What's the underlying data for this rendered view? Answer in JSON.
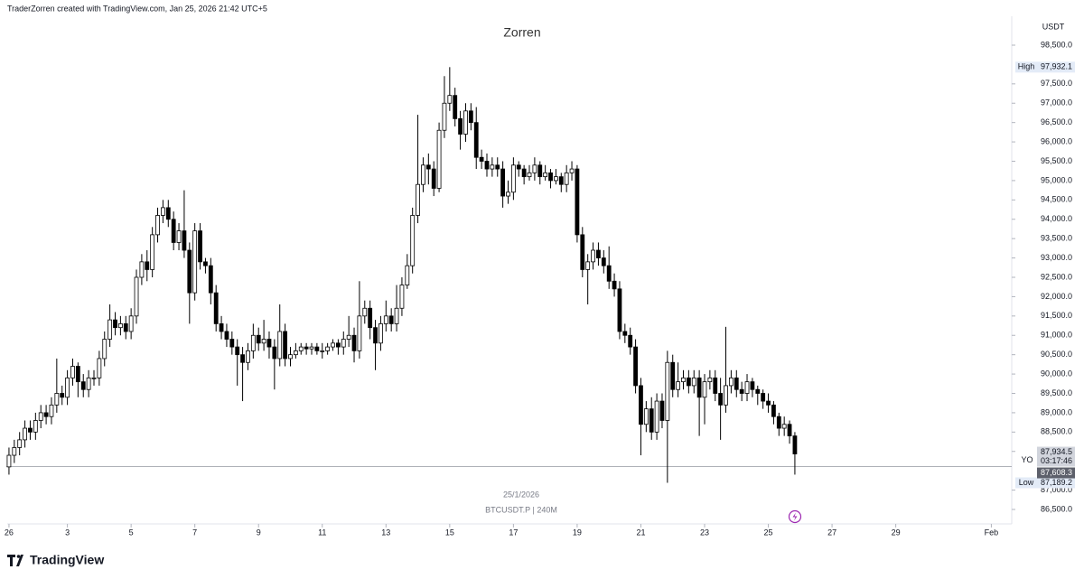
{
  "chart_data": {
    "type": "candlestick",
    "header": "TraderZorren created with TradingView.com, Jan 25, 2026 21:42 UTC+5",
    "title": "Zorren",
    "currency": "USDT",
    "watermark_date": "25/1/2026",
    "watermark_symbol": "BTCUSDT.P | 240M",
    "logo": "TradingView",
    "up_color": "#ffffff",
    "down_color": "#000000",
    "outline_color": "#000000",
    "open": [
      87600,
      87900,
      88100,
      88300,
      88600,
      88500,
      88800,
      89000,
      88900,
      89200,
      89500,
      89400,
      89900,
      90200,
      89800,
      89600,
      89900,
      89900,
      90400,
      90900,
      91400,
      91200,
      91300,
      91100,
      91500,
      92500,
      92900,
      92700,
      93600,
      94100,
      94300,
      94000,
      93400,
      93700,
      93200,
      92100,
      93700,
      92900,
      92800,
      92100,
      91300,
      91100,
      90900,
      90700,
      90500,
      90300,
      90600,
      91000,
      90800,
      90900,
      90700,
      90400,
      91100,
      90400,
      90500,
      90600,
      90700,
      90650,
      90700,
      90600,
      90600,
      90700,
      90800,
      90700,
      90900,
      91000,
      90600,
      91500,
      91700,
      91200,
      90800,
      91300,
      91500,
      91300,
      91700,
      92300,
      92800,
      94100,
      94900,
      95400,
      95300,
      94800,
      96300,
      97000,
      97200,
      96600,
      96200,
      96800,
      96500,
      95600,
      95500,
      95300,
      95400,
      95300,
      94600,
      94700,
      95400,
      95300,
      95100,
      95200,
      95400,
      95100,
      95200,
      95000,
      95100,
      94900,
      95200,
      95300,
      93600,
      92700,
      92900,
      93200,
      93000,
      92800,
      92400,
      92200,
      91100,
      91000,
      90700,
      89700,
      88700,
      89100,
      88500,
      89300,
      88800,
      90300,
      89600,
      89800,
      89900,
      89700,
      89900,
      89400,
      89800,
      89900,
      89500,
      89200,
      89700,
      89900,
      89600,
      89500,
      89800,
      89600,
      89500,
      89300,
      89200,
      88900,
      88600,
      88700,
      88400
    ],
    "high": [
      88100,
      88300,
      88500,
      88800,
      88800,
      89000,
      89200,
      89200,
      89400,
      90400,
      89700,
      90100,
      90400,
      90300,
      90000,
      90100,
      90100,
      90600,
      91100,
      91800,
      91600,
      91500,
      91500,
      91700,
      92700,
      93100,
      93200,
      93800,
      94300,
      94500,
      94500,
      94200,
      93900,
      94750,
      93400,
      93900,
      93900,
      93000,
      93000,
      92300,
      91500,
      91300,
      91100,
      90900,
      90700,
      90800,
      91300,
      91200,
      91400,
      91100,
      90900,
      91800,
      91300,
      90700,
      90800,
      90800,
      90800,
      90800,
      90800,
      90800,
      90800,
      90900,
      90900,
      91100,
      91500,
      91200,
      92400,
      91900,
      91900,
      91400,
      91500,
      91900,
      91700,
      92300,
      92500,
      93100,
      94300,
      96700,
      95600,
      95700,
      95500,
      96500,
      97700,
      97932.1,
      97400,
      96800,
      97000,
      97000,
      96900,
      95800,
      95700,
      95600,
      95600,
      95500,
      95000,
      95600,
      95500,
      95400,
      95400,
      95600,
      95500,
      95400,
      95300,
      95300,
      95200,
      95400,
      95500,
      95400,
      93800,
      93100,
      93400,
      93400,
      93200,
      93300,
      92600,
      92400,
      91300,
      91200,
      90900,
      89900,
      89300,
      89400,
      89500,
      89500,
      90600,
      90500,
      90300,
      90100,
      90100,
      90100,
      90100,
      90000,
      90100,
      90100,
      89900,
      91220,
      90100,
      90100,
      89800,
      90000,
      89900,
      89700,
      89600,
      89500,
      89300,
      89000,
      88900,
      88800,
      88500
    ],
    "low": [
      87400,
      87700,
      87900,
      88100,
      88300,
      88300,
      88600,
      88700,
      88700,
      89000,
      89200,
      89200,
      89700,
      89400,
      89400,
      89400,
      89700,
      89700,
      90200,
      90700,
      91000,
      91000,
      90900,
      90900,
      91300,
      92300,
      92400,
      92500,
      93400,
      93900,
      93800,
      93200,
      93200,
      93000,
      91300,
      91900,
      92700,
      92600,
      91800,
      91100,
      90900,
      90700,
      90500,
      89700,
      89300,
      90100,
      90400,
      90600,
      90600,
      90400,
      89600,
      90200,
      90200,
      90200,
      90400,
      90500,
      90500,
      90500,
      90500,
      90400,
      90500,
      90600,
      90500,
      90500,
      90700,
      90300,
      90400,
      91300,
      90900,
      90100,
      90600,
      91100,
      91100,
      91100,
      91500,
      92200,
      92600,
      93900,
      94700,
      94900,
      94600,
      94700,
      96100,
      96800,
      96400,
      95800,
      96000,
      96300,
      95300,
      95300,
      95100,
      95100,
      95100,
      94300,
      94400,
      94500,
      95100,
      94900,
      95000,
      95000,
      94900,
      95000,
      94800,
      94900,
      94700,
      94700,
      95000,
      93400,
      92500,
      91800,
      92700,
      92800,
      92600,
      92200,
      92000,
      90900,
      90800,
      90500,
      89500,
      87900,
      88500,
      88300,
      88300,
      88600,
      87189.2,
      89400,
      89400,
      89600,
      89500,
      89500,
      88400,
      88700,
      89600,
      89300,
      88300,
      89000,
      89500,
      89400,
      89300,
      89300,
      89400,
      89200,
      89100,
      89000,
      88700,
      88400,
      88400,
      88200,
      87400
    ],
    "close": [
      87900,
      88100,
      88300,
      88600,
      88500,
      88800,
      89000,
      88900,
      89200,
      89500,
      89400,
      89900,
      90200,
      89800,
      89600,
      89900,
      89900,
      90400,
      90900,
      91400,
      91200,
      91300,
      91100,
      91500,
      92500,
      92900,
      92700,
      93600,
      94100,
      94300,
      94000,
      93400,
      93700,
      93200,
      92100,
      93700,
      92900,
      92800,
      92100,
      91300,
      91100,
      90900,
      90700,
      90500,
      90300,
      90600,
      91000,
      90800,
      90900,
      90700,
      90400,
      91100,
      90400,
      90500,
      90600,
      90700,
      90650,
      90700,
      90600,
      90600,
      90700,
      90800,
      90700,
      90900,
      91000,
      90600,
      91500,
      91700,
      91200,
      90800,
      91300,
      91500,
      91300,
      91700,
      92300,
      92800,
      94100,
      94900,
      95400,
      95300,
      94800,
      96300,
      97000,
      97200,
      96600,
      96200,
      96800,
      96500,
      95600,
      95500,
      95300,
      95400,
      95300,
      94600,
      94700,
      95400,
      95300,
      95100,
      95200,
      95400,
      95100,
      95200,
      95000,
      95100,
      94900,
      95200,
      95300,
      93600,
      92700,
      92900,
      93200,
      93000,
      92800,
      92400,
      92200,
      91100,
      91000,
      90700,
      89700,
      88700,
      89100,
      88500,
      89300,
      88800,
      90300,
      89600,
      89800,
      89900,
      89700,
      89900,
      89400,
      89800,
      89900,
      89500,
      89200,
      89700,
      89900,
      89600,
      89500,
      89800,
      89600,
      89500,
      89300,
      89200,
      88900,
      88600,
      88700,
      88400,
      87934.5
    ],
    "xlim": [
      -0.5,
      188.5
    ],
    "xticks": [
      {
        "value": 0,
        "label": "26"
      },
      {
        "value": 11,
        "label": "3"
      },
      {
        "value": 23,
        "label": "5"
      },
      {
        "value": 35,
        "label": "7"
      },
      {
        "value": 47,
        "label": "9"
      },
      {
        "value": 59,
        "label": "11"
      },
      {
        "value": 71,
        "label": "13"
      },
      {
        "value": 83,
        "label": "15"
      },
      {
        "value": 95,
        "label": "17"
      },
      {
        "value": 107,
        "label": "19"
      },
      {
        "value": 119,
        "label": "21"
      },
      {
        "value": 131,
        "label": "23"
      },
      {
        "value": 143,
        "label": "25"
      },
      {
        "value": 155,
        "label": "27"
      },
      {
        "value": 167,
        "label": "29"
      },
      {
        "value": 185,
        "label": "Feb"
      }
    ],
    "ylim": [
      86150,
      99100
    ],
    "yticks": [
      {
        "value": 86500,
        "label": "86,500.0"
      },
      {
        "value": 87000,
        "label": "87,000.0"
      },
      {
        "value": 88000,
        "label": "88,000.0"
      },
      {
        "value": 88500,
        "label": "88,500.0"
      },
      {
        "value": 89000,
        "label": "89,000.0"
      },
      {
        "value": 89500,
        "label": "89,500.0"
      },
      {
        "value": 90000,
        "label": "90,000.0"
      },
      {
        "value": 90500,
        "label": "90,500.0"
      },
      {
        "value": 91000,
        "label": "91,000.0"
      },
      {
        "value": 91500,
        "label": "91,500.0"
      },
      {
        "value": 92000,
        "label": "92,000.0"
      },
      {
        "value": 92500,
        "label": "92,500.0"
      },
      {
        "value": 93000,
        "label": "93,000.0"
      },
      {
        "value": 93500,
        "label": "93,500.0"
      },
      {
        "value": 94000,
        "label": "94,000.0"
      },
      {
        "value": 94500,
        "label": "94,500.0"
      },
      {
        "value": 95000,
        "label": "95,000.0"
      },
      {
        "value": 95500,
        "label": "95,500.0"
      },
      {
        "value": 96000,
        "label": "96,000.0"
      },
      {
        "value": 96500,
        "label": "96,500.0"
      },
      {
        "value": 97000,
        "label": "97,000.0"
      },
      {
        "value": 97500,
        "label": "97,500.0"
      },
      {
        "value": 98500,
        "label": "98,500.0"
      }
    ],
    "grid": false,
    "high_marker": {
      "name": "High",
      "value": 97932.1,
      "value_label": "97,932.1"
    },
    "low_marker": {
      "name": "Low",
      "value": 87189.2,
      "value_label": "87,189.2"
    },
    "last_price": {
      "value": 87934.5,
      "value_label": "87,934.5",
      "countdown": "03:17:46"
    },
    "level": {
      "name": "YO",
      "value": 87608.3,
      "value_label": "87,608.3"
    }
  }
}
